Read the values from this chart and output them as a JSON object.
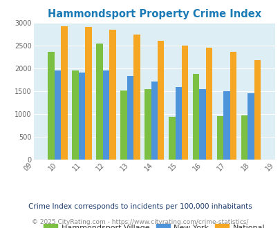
{
  "title": "Hammondsport Property Crime Index",
  "tick_labels": [
    "09",
    "10",
    "11",
    "12",
    "13",
    "14",
    "15",
    "16",
    "17",
    "18",
    "19"
  ],
  "bar_years": [
    2010,
    2011,
    2012,
    2013,
    2014,
    2015,
    2016,
    2017,
    2018
  ],
  "hammondsport": [
    2370,
    1960,
    2550,
    1520,
    1550,
    940,
    1880,
    960,
    975
  ],
  "new_york": [
    1960,
    1910,
    1950,
    1840,
    1710,
    1590,
    1540,
    1500,
    1460
  ],
  "national": [
    2930,
    2910,
    2850,
    2750,
    2610,
    2500,
    2460,
    2360,
    2185
  ],
  "color_hammondsport": "#7bc043",
  "color_new_york": "#4d94db",
  "color_national": "#f5a623",
  "ylim": [
    0,
    3000
  ],
  "yticks": [
    0,
    500,
    1000,
    1500,
    2000,
    2500,
    3000
  ],
  "background_color": "#deeef5",
  "title_color": "#1a7ab5",
  "subtitle": "Crime Index corresponds to incidents per 100,000 inhabitants",
  "subtitle_color": "#1a3a6b",
  "footer": "© 2025 CityRating.com - https://www.cityrating.com/crime-statistics/",
  "footer_color": "#888888",
  "legend_labels": [
    "Hammondsport Village",
    "New York",
    "National"
  ]
}
